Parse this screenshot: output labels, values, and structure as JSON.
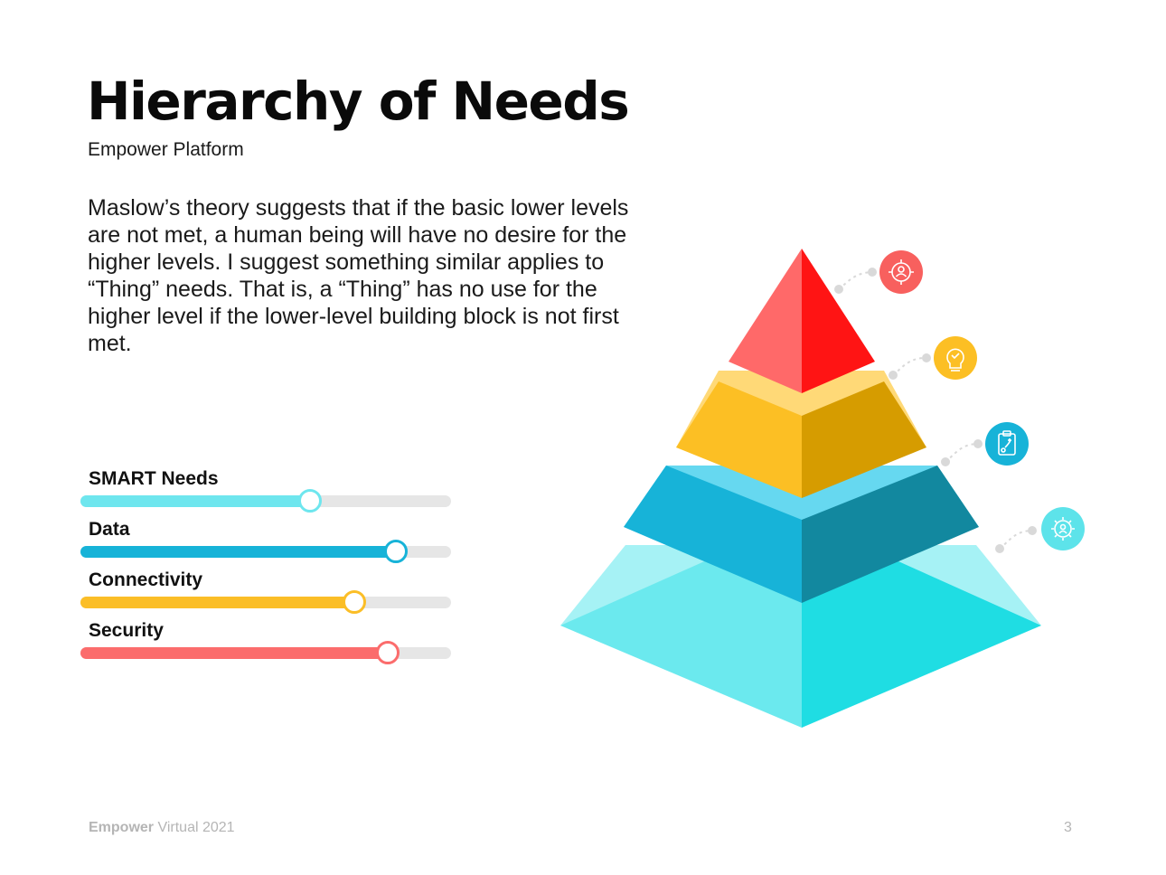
{
  "slide": {
    "title": "Hierarchy of Needs",
    "subtitle": "Empower Platform",
    "body": "Maslow’s theory suggests that if the basic lower levels are not met, a human being will have no desire for the higher levels. I suggest something similar applies to “Thing” needs. That is, a “Thing” has no use for the higher level if the lower-level building block is not first met."
  },
  "needs": [
    {
      "label": "SMART Needs",
      "level": 0.62,
      "color": "#6ee6ee"
    },
    {
      "label": "Data",
      "level": 0.85,
      "color": "#17b3d8"
    },
    {
      "label": "Connectivity",
      "level": 0.74,
      "color": "#fbbe27"
    },
    {
      "label": "Security",
      "level": 0.83,
      "color": "#fb6c6c"
    }
  ],
  "pyramid": {
    "tiers": [
      {
        "name": "top",
        "left_color": "#ff6969",
        "right_color": "#ff1414",
        "top_color": "",
        "icon": "target-user-icon",
        "icon_color": "#f8605e"
      },
      {
        "name": "second",
        "left_color": "#fcbf24",
        "right_color": "#d69c00",
        "top_color": "#ffd977",
        "icon": "lightbulb-icon",
        "icon_color": "#fcbf24"
      },
      {
        "name": "third",
        "left_color": "#17b3d8",
        "right_color": "#12889f",
        "top_color": "#66d8f0",
        "icon": "clipboard-strategy-icon",
        "icon_color": "#17b3d8"
      },
      {
        "name": "base",
        "left_color": "#6be9ee",
        "right_color": "#1fdde3",
        "top_color": "#a6f2f5",
        "icon": "gear-user-icon",
        "icon_color": "#5de3ea"
      }
    ]
  },
  "footer": {
    "brand": "Empower",
    "rest": " Virtual 2021",
    "page": "3"
  }
}
